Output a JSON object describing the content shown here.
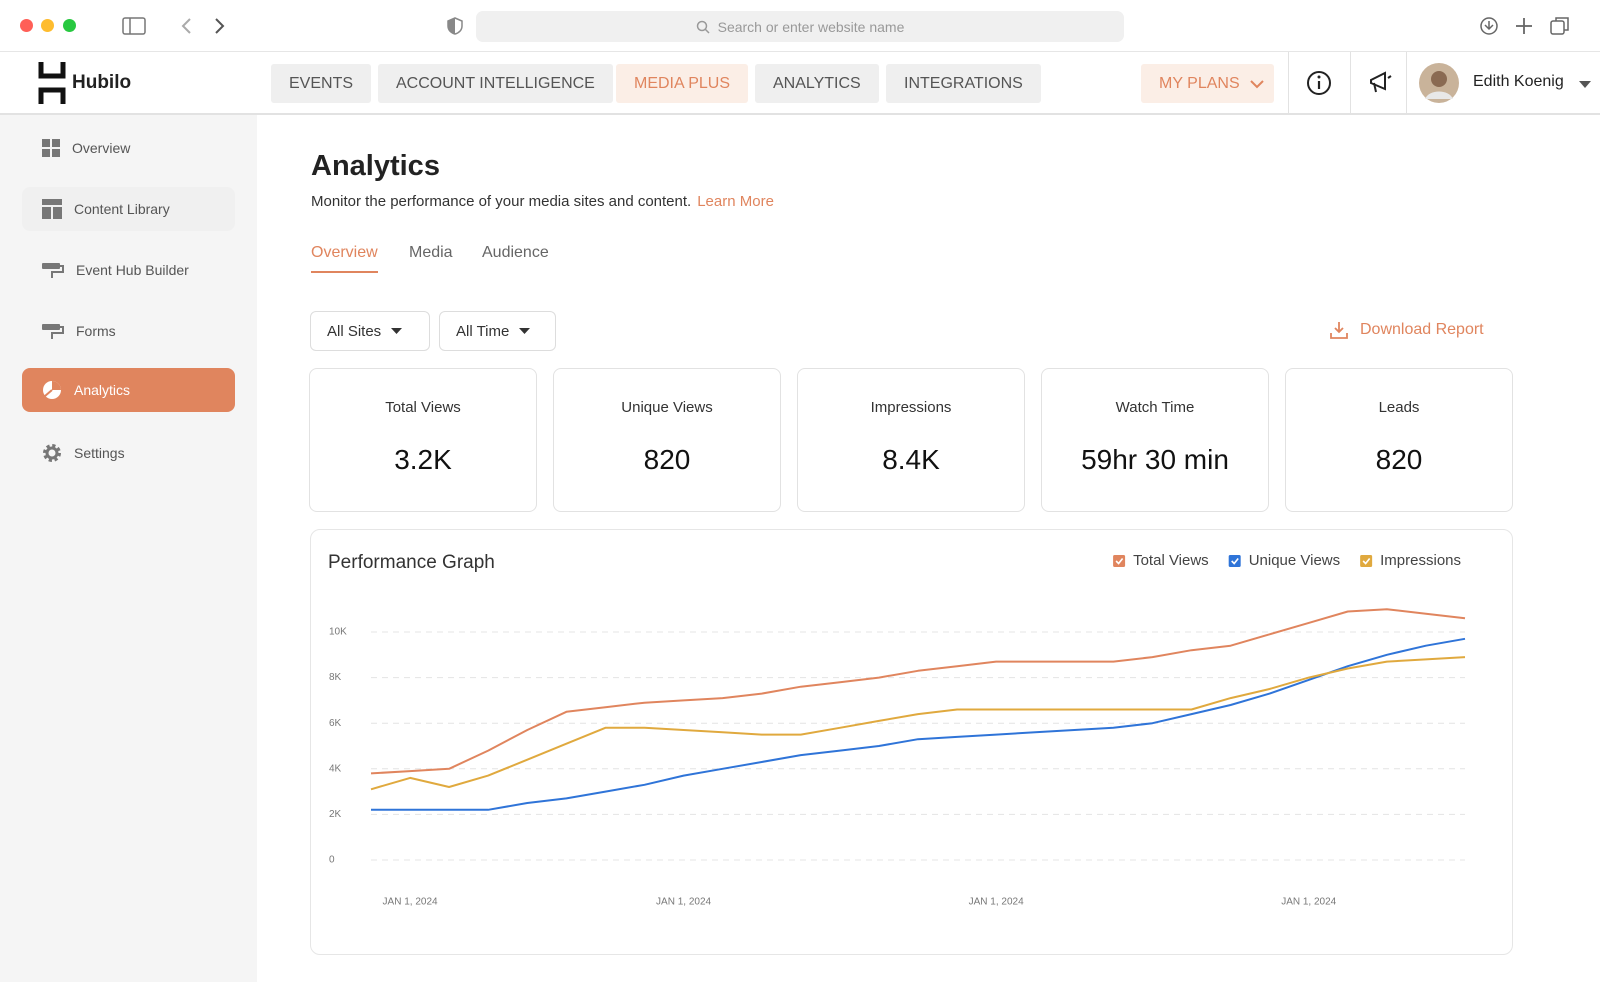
{
  "browser": {
    "search_placeholder": "Search or enter website name"
  },
  "header": {
    "brand": "Hubilo",
    "nav": [
      "EVENTS",
      "ACCOUNT INTELLIGENCE",
      "MEDIA PLUS",
      "ANALYTICS",
      "INTEGRATIONS"
    ],
    "plans": "MY PLANS",
    "user": "Edith Koenig"
  },
  "sidebar": {
    "items": [
      "Overview",
      "Content Library",
      "Event Hub Builder",
      "Forms",
      "Analytics",
      "Settings"
    ]
  },
  "page": {
    "title": "Analytics",
    "description": "Monitor the performance of your media sites and content.",
    "learn_more": "Learn More",
    "tabs": [
      "Overview",
      "Media",
      "Audience"
    ],
    "filters": [
      "All Sites",
      "All Time"
    ],
    "download": "Download Report"
  },
  "stats": [
    {
      "label": "Total Views",
      "value": "3.2K"
    },
    {
      "label": "Unique Views",
      "value": "820"
    },
    {
      "label": "Impressions",
      "value": "8.4K"
    },
    {
      "label": "Watch Time",
      "value": "59hr 30 min"
    },
    {
      "label": "Leads",
      "value": "820"
    }
  ],
  "chart_data": {
    "type": "line",
    "title": "Performance Graph",
    "categories": [
      null,
      "JAN 1, 2024",
      null,
      null,
      null,
      null,
      null,
      null,
      "JAN 1, 2024",
      null,
      null,
      null,
      null,
      null,
      null,
      null,
      "JAN 1, 2024",
      null,
      null,
      null,
      null,
      null,
      null,
      null,
      "JAN 1, 2024",
      null,
      null,
      null,
      null
    ],
    "series": [
      {
        "name": "Total Views",
        "color": "#e0855e",
        "values": [
          3800,
          3900,
          4000,
          4800,
          5700,
          6500,
          6700,
          6900,
          7000,
          7100,
          7300,
          7600,
          7800,
          8000,
          8300,
          8500,
          8700,
          8700,
          8700,
          8700,
          8900,
          9200,
          9400,
          9900,
          10400,
          10900,
          11000,
          10800,
          10600
        ]
      },
      {
        "name": "Unique Views",
        "color": "#2f74d8",
        "values": [
          2200,
          2200,
          2200,
          2200,
          2500,
          2700,
          3000,
          3300,
          3700,
          4000,
          4300,
          4600,
          4800,
          5000,
          5300,
          5400,
          5500,
          5600,
          5700,
          5800,
          6000,
          6400,
          6800,
          7300,
          7900,
          8500,
          9000,
          9400,
          9700
        ]
      },
      {
        "name": "Impressions",
        "color": "#e0a93e",
        "values": [
          3100,
          3600,
          3200,
          3700,
          4400,
          5100,
          5800,
          5800,
          5700,
          5600,
          5500,
          5500,
          5800,
          6100,
          6400,
          6600,
          6600,
          6600,
          6600,
          6600,
          6600,
          6600,
          7100,
          7500,
          8000,
          8400,
          8700,
          8800,
          8900
        ]
      }
    ],
    "ylim": [
      0,
      12000
    ],
    "yticks": [
      0,
      {
        "value": 2000,
        "label": "2K"
      },
      {
        "value": 4000,
        "label": "4K"
      },
      {
        "value": 6000,
        "label": "6K"
      },
      {
        "value": 8000,
        "label": "8K"
      },
      {
        "value": 10000,
        "label": "10K"
      }
    ],
    "grid": true,
    "legend": "top-right"
  }
}
